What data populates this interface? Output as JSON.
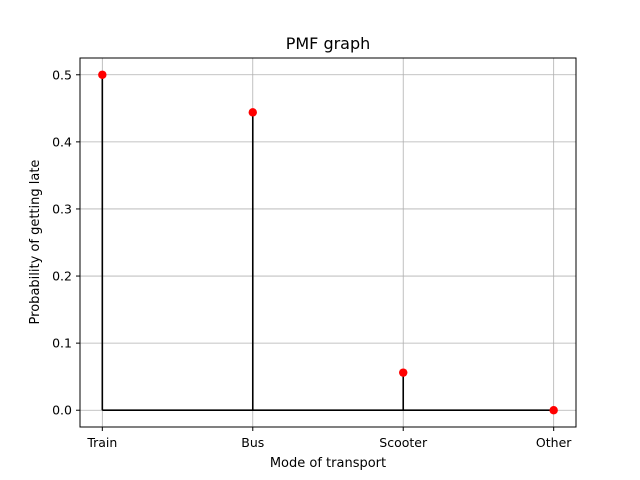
{
  "chart_data": {
    "type": "stem",
    "title": "PMF graph",
    "xlabel": "Mode of transport",
    "ylabel": "Probability of getting late",
    "categories": [
      "Train",
      "Bus",
      "Scooter",
      "Other"
    ],
    "values": [
      0.5,
      0.444,
      0.056,
      0.0
    ],
    "ylim": [
      -0.025,
      0.525
    ],
    "yticks": [
      0.0,
      0.1,
      0.2,
      0.3,
      0.4,
      0.5
    ],
    "ytick_labels": [
      "0.0",
      "0.1",
      "0.2",
      "0.3",
      "0.4",
      "0.5"
    ],
    "grid": true,
    "colors": {
      "marker": "#ff0000",
      "stem": "#000000",
      "baseline": "#000000",
      "grid": "#b0b0b0"
    }
  }
}
